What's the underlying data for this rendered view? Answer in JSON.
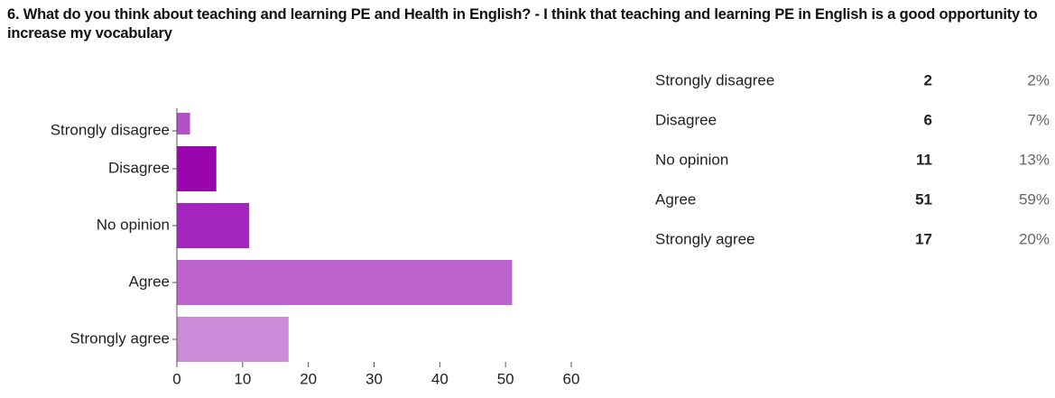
{
  "chart_data": {
    "type": "bar",
    "title": "6. What do you think about teaching and learning PE and Health in English? - I think that teaching and learning PE in English is a good opportunity to increase my vocabulary",
    "categories": [
      "Strongly disagree",
      "Disagree",
      "No opinion",
      "Agree",
      "Strongly agree"
    ],
    "values": [
      2,
      6,
      11,
      51,
      17
    ],
    "colors": [
      "#b551c6",
      "#9a05ae",
      "#a424be",
      "#bd63cc",
      "#cc8ad9"
    ],
    "xlim": [
      0,
      60
    ],
    "xticks": [
      0,
      10,
      20,
      30,
      40,
      50,
      60
    ],
    "percent_labels": [
      "2%",
      "7%",
      "13%",
      "59%",
      "20%"
    ]
  }
}
